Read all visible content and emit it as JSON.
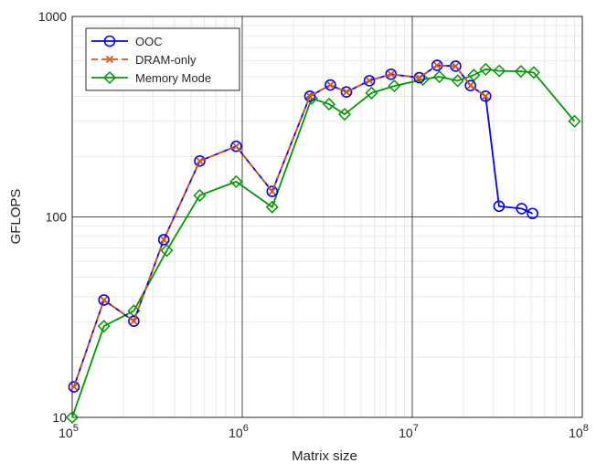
{
  "chart_data": {
    "type": "line",
    "title": "",
    "xlabel": "Matrix size",
    "ylabel": "GFLOPS",
    "xscale": "log",
    "yscale": "log",
    "xlim": [
      100000,
      100000000
    ],
    "ylim": [
      10,
      1000
    ],
    "grid": true,
    "legend_position": "top-left",
    "x_ticks": [
      {
        "value": 100000,
        "base": "10",
        "exp": "5"
      },
      {
        "value": 1000000,
        "base": "10",
        "exp": "6"
      },
      {
        "value": 10000000,
        "base": "10",
        "exp": "7"
      },
      {
        "value": 100000000,
        "base": "10",
        "exp": "8"
      }
    ],
    "y_ticks": [
      {
        "value": 10,
        "label": "10"
      },
      {
        "value": 100,
        "label": "100"
      },
      {
        "value": 1000,
        "label": "1000"
      }
    ],
    "series": [
      {
        "name": "OOC",
        "color": "#0000ff",
        "line_style": "solid",
        "marker": "circle",
        "x": [
          102400,
          153600,
          230400,
          345600,
          562500,
          921600,
          1500000,
          2500000,
          3300000,
          4100000,
          5600000,
          7500000,
          11000000,
          14000000,
          18000000,
          22000000,
          27000000,
          32400000,
          44000000,
          51000000
        ],
        "y": [
          14.2,
          38.5,
          30.2,
          77,
          190,
          225,
          134,
          400,
          455,
          420,
          478,
          515,
          495,
          570,
          565,
          452,
          400,
          113,
          110,
          104
        ]
      },
      {
        "name": "DRAM-only",
        "color": "#d95319",
        "line_style": "dashed",
        "marker": "x",
        "x": [
          102400,
          153600,
          230400,
          345600,
          562500,
          921600,
          1500000,
          2500000,
          3300000,
          4100000,
          5600000,
          7500000,
          11000000,
          14000000,
          18000000,
          22000000,
          27000000
        ],
        "y": [
          14.2,
          38.5,
          30.2,
          77,
          190,
          225,
          134,
          400,
          455,
          420,
          478,
          515,
          495,
          570,
          565,
          452,
          400
        ]
      },
      {
        "name": "Memory Mode",
        "color": "#009900",
        "line_style": "solid",
        "marker": "diamond",
        "x": [
          100000,
          153600,
          230400,
          360000,
          562500,
          921600,
          1500000,
          2560000,
          3240000,
          4000000,
          5760000,
          7840000,
          11560000,
          14440000,
          18490000,
          23040000,
          27040000,
          32490000,
          43560000,
          51840000,
          90000000
        ],
        "y": [
          10,
          28.5,
          34,
          68,
          128,
          150,
          112,
          390,
          365,
          325,
          415,
          450,
          485,
          500,
          478,
          510,
          545,
          535,
          532,
          525,
          300
        ]
      }
    ]
  }
}
